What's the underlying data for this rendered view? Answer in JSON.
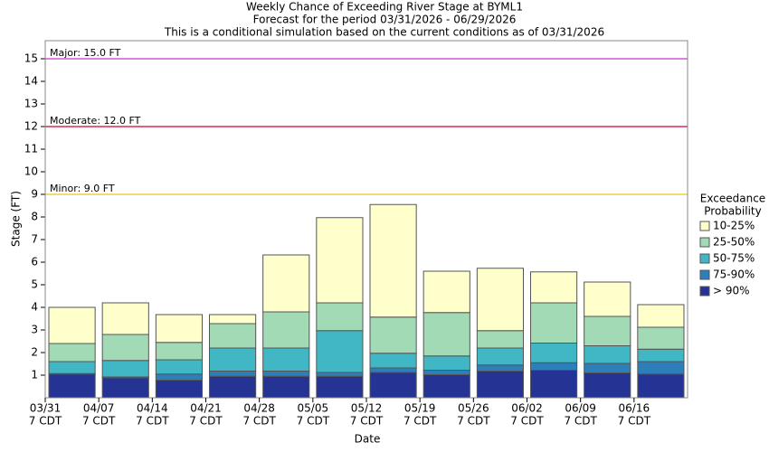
{
  "chart_data": {
    "type": "stacked-bar",
    "title": [
      "Weekly Chance of Exceeding River Stage at BYML1",
      "Forecast for the period 03/31/2026 - 06/29/2026",
      "This is a conditional simulation based on the current conditions as of 03/31/2026"
    ],
    "y_label": "Stage (FT)",
    "x_label": "Date",
    "legend_title": [
      "Exceedance",
      "Probability"
    ],
    "categories": [
      [
        "03/31",
        "7 CDT"
      ],
      [
        "04/07",
        "7 CDT"
      ],
      [
        "04/14",
        "7 CDT"
      ],
      [
        "04/21",
        "7 CDT"
      ],
      [
        "04/28",
        "7 CDT"
      ],
      [
        "05/05",
        "7 CDT"
      ],
      [
        "05/12",
        "7 CDT"
      ],
      [
        "05/19",
        "7 CDT"
      ],
      [
        "05/26",
        "7 CDT"
      ],
      [
        "06/02",
        "7 CDT"
      ],
      [
        "06/09",
        "7 CDT"
      ],
      [
        "06/16",
        "7 CDT"
      ]
    ],
    "series": [
      {
        "name": "10-25%",
        "color": "#ffffcc",
        "values": [
          1.6,
          1.4,
          1.23,
          0.4,
          2.52,
          3.77,
          4.98,
          1.83,
          2.76,
          1.37,
          1.52,
          1.0
        ]
      },
      {
        "name": "25-50%",
        "color": "#a1dab4",
        "values": [
          0.8,
          1.15,
          0.77,
          1.08,
          1.6,
          1.23,
          1.6,
          1.92,
          0.77,
          1.78,
          1.3,
          0.97
        ]
      },
      {
        "name": "50-75%",
        "color": "#41b6c4",
        "values": [
          0.53,
          0.73,
          0.63,
          1.02,
          1.02,
          1.85,
          0.65,
          0.63,
          0.75,
          0.87,
          0.78,
          0.55
        ]
      },
      {
        "name": "75-90%",
        "color": "#2c7fb8",
        "values": [
          0.02,
          0.04,
          0.27,
          0.23,
          0.23,
          0.17,
          0.2,
          0.2,
          0.27,
          0.33,
          0.42,
          0.55
        ]
      },
      {
        "name": "> 90%",
        "color": "#253494",
        "values": [
          1.05,
          0.88,
          0.78,
          0.95,
          0.95,
          0.95,
          1.12,
          1.02,
          1.18,
          1.22,
          1.1,
          1.05
        ]
      }
    ],
    "thresholds": [
      {
        "label": "Major: 15.0 FT",
        "value": 15,
        "color": "#cc33cc"
      },
      {
        "label": "Moderate: 12.0 FT",
        "value": 12,
        "color": "#cc0033"
      },
      {
        "label": "Minor: 9.0 FT",
        "value": 9,
        "color": "#e6c619"
      }
    ],
    "ylim": [
      0,
      15.8
    ],
    "yticks": [
      1,
      2,
      3,
      4,
      5,
      6,
      7,
      8,
      9,
      10,
      11,
      12,
      13,
      14,
      15
    ]
  }
}
